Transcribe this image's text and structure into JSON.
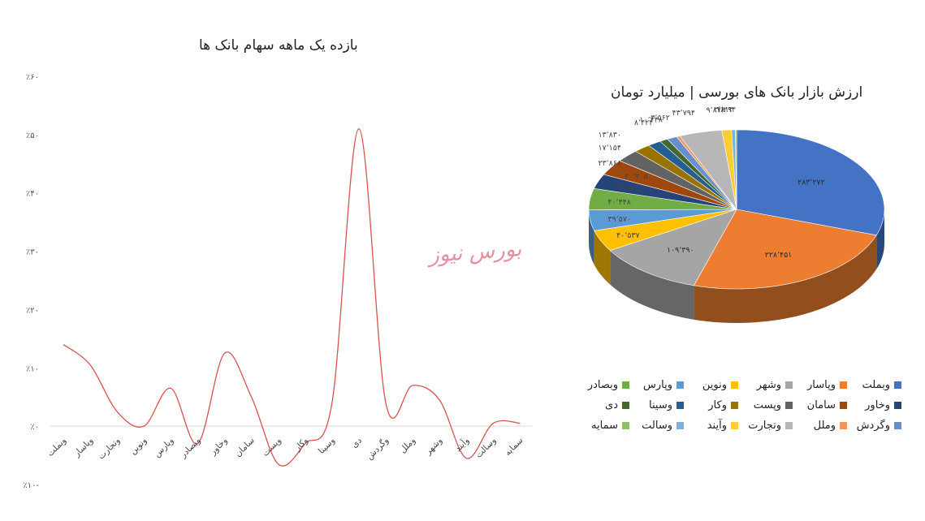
{
  "chart_data": [
    {
      "type": "line",
      "title": "بازده یک ماهه سهام بانک ها",
      "categories": [
        "وبملت",
        "وپاسار",
        "وتجارت",
        "ونوین",
        "وپارس",
        "وبصادر",
        "وخاور",
        "سامان",
        "وپست",
        "وکار",
        "وسینا",
        "دی",
        "وگردش",
        "وملل",
        "وشهر",
        "وآیند",
        "وسالت",
        "سمایه"
      ],
      "values": [
        14,
        10.5,
        2.5,
        0,
        6.5,
        -3,
        12.5,
        5,
        -6.5,
        -3,
        4,
        51,
        4,
        7,
        4.5,
        -5.5,
        0.5,
        0.5
      ],
      "ylim": [
        -10,
        60
      ],
      "yticks": [
        -10,
        0,
        10,
        20,
        30,
        40,
        50,
        60
      ],
      "ytick_labels": [
        "٪۱۰-",
        "٪۰",
        "٪۱۰",
        "٪۲۰",
        "٪۳۰",
        "٪۴۰",
        "٪۵۰",
        "٪۶۰"
      ],
      "line_color": "#d9534f",
      "grid": false
    },
    {
      "type": "pie",
      "title": "ارزش بازار بانک های بورسی | میلیارد تومان",
      "legend_position": "bottom",
      "slices": [
        {
          "name": "وبملت",
          "value": 283272,
          "label": "۲۸۳٬۲۷۲",
          "color": "#4472c4"
        },
        {
          "name": "وپاسار",
          "value": 228451,
          "label": "۲۲۸٬۴۵۱",
          "color": "#ed7d31"
        },
        {
          "name": "وشهر",
          "value": 109390,
          "label": "۱۰۹٬۳۹۰",
          "color": "#a5a5a5"
        },
        {
          "name": "ونوین",
          "value": 40537,
          "label": "۴۰٬۵۳۷",
          "color": "#ffc000"
        },
        {
          "name": "وپارس",
          "value": 39570,
          "label": "۳۹٬۵۷۰",
          "color": "#5b9bd5"
        },
        {
          "name": "وبصادر",
          "value": 40448,
          "label": "۴۰٬۴۴۸",
          "color": "#70ad47"
        },
        {
          "name": "وخاور",
          "value": 28188,
          "label": "۲۸٬۱۸۸",
          "color": "#264478"
        },
        {
          "name": "سامان",
          "value": 30305,
          "label": "۳۰٬۳۰۵",
          "color": "#9e480e"
        },
        {
          "name": "وپست",
          "value": 23868,
          "label": "۲۳٬۸۶۸",
          "color": "#636363"
        },
        {
          "name": "وکار",
          "value": 17154,
          "label": "۱۷٬۱۵۴",
          "color": "#997300"
        },
        {
          "name": "وسینا",
          "value": 13830,
          "label": "۱۳٬۸۳۰",
          "color": "#255e91"
        },
        {
          "name": "دی",
          "value": 8424,
          "label": "۸٬۴۲۴",
          "color": "#43682b"
        },
        {
          "name": "وگردش",
          "value": 10348,
          "label": "۱۰٬۳۴۸",
          "color": "#698ed0"
        },
        {
          "name": "وملل",
          "value": 3562,
          "label": "۳٬۵۶۲",
          "color": "#f1975a"
        },
        {
          "name": "وتجارت",
          "value": 43794,
          "label": "۴۳٬۷۹۴",
          "color": "#b7b7b7"
        },
        {
          "name": "وآیند",
          "value": 9872,
          "label": "۹٬۸۷۲",
          "color": "#ffcd33"
        },
        {
          "name": "وسالت",
          "value": 3813,
          "label": "۳٬۸۱۳",
          "color": "#7cafdd"
        },
        {
          "name": "سمایه",
          "value": 1294,
          "label": "۱٬۲۹۴",
          "color": "#8cc168"
        }
      ]
    }
  ],
  "watermark": "بورس نیوز"
}
